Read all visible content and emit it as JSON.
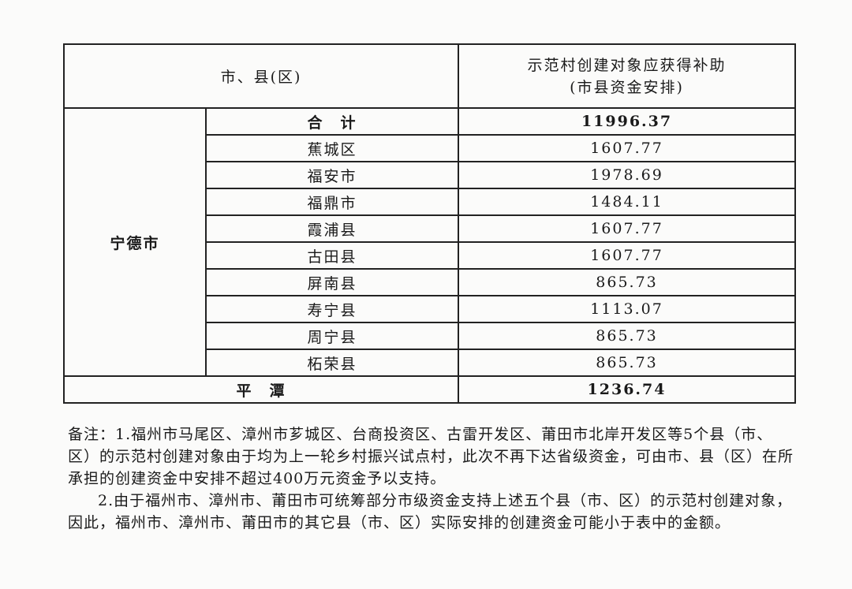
{
  "table": {
    "header": {
      "col1": "市、县(区)",
      "col2_line1": "示范村创建对象应获得补助",
      "col2_line2": "(市县资金安排)"
    },
    "group": "宁德市",
    "rows": [
      {
        "name": "合　计",
        "value": "11996.37"
      },
      {
        "name": "蕉城区",
        "value": "1607.77"
      },
      {
        "name": "福安市",
        "value": "1978.69"
      },
      {
        "name": "福鼎市",
        "value": "1484.11"
      },
      {
        "name": "霞浦县",
        "value": "1607.77"
      },
      {
        "name": "古田县",
        "value": "1607.77"
      },
      {
        "name": "屏南县",
        "value": "865.73"
      },
      {
        "name": "寿宁县",
        "value": "1113.07"
      },
      {
        "name": "周宁县",
        "value": "865.73"
      },
      {
        "name": "柘荣县",
        "value": "865.73"
      }
    ],
    "pingtan": {
      "name": "平　潭",
      "value": "1236.74"
    }
  },
  "notes": {
    "note1": "备注：1.福州市马尾区、漳州市芗城区、台商投资区、古雷开发区、莆田市北岸开发区等5个县（市、区）的示范村创建对象由于均为上一轮乡村振兴试点村，此次不再下达省级资金，可由市、县（区）在所承担的创建资金中安排不超过400万元资金予以支持。",
    "note2": "2.由于福州市、漳州市、莆田市可统筹部分市级资金支持上述五个县（市、区）的示范村创建对象，因此，福州市、漳州市、莆田市的其它县（市、区）实际安排的创建资金可能小于表中的金额。"
  }
}
